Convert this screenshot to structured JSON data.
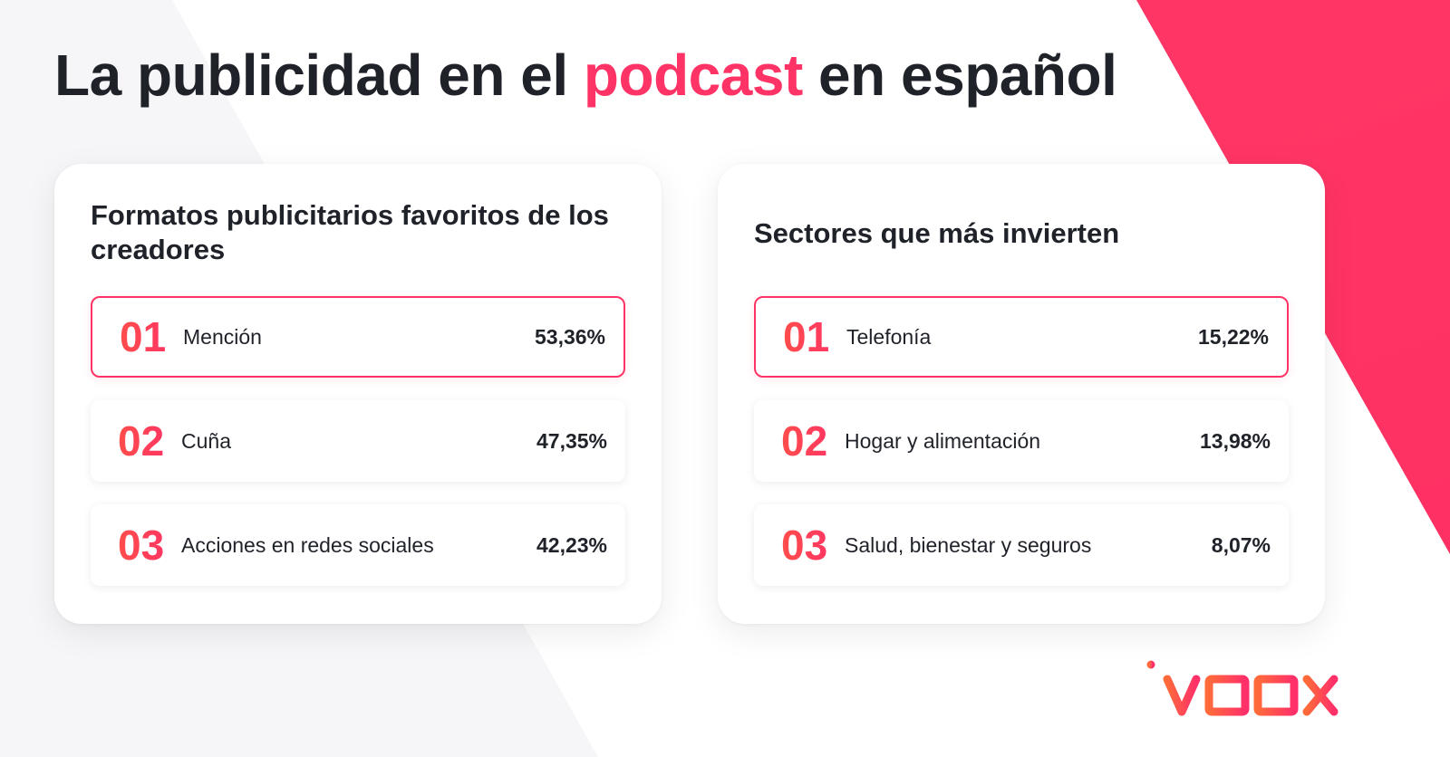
{
  "headline": {
    "part1": "La publicidad en el ",
    "accent": "podcast",
    "part2": " en español"
  },
  "cards": [
    {
      "title": "Formatos publicitarios favoritos de los creadores",
      "rows": [
        {
          "rank": "01",
          "label": "Mención",
          "value": "53,36%"
        },
        {
          "rank": "02",
          "label": "Cuña",
          "value": "47,35%"
        },
        {
          "rank": "03",
          "label": "Acciones en redes sociales",
          "value": "42,23%"
        }
      ]
    },
    {
      "title": "Sectores que más invierten",
      "rows": [
        {
          "rank": "01",
          "label": "Telefonía",
          "value": "15,22%"
        },
        {
          "rank": "02",
          "label": "Hogar y alimentación",
          "value": "13,98%"
        },
        {
          "rank": "03",
          "label": "Salud, bienestar y seguros",
          "value": "8,07%"
        }
      ]
    }
  ],
  "logo": {
    "text": "ivoox",
    "icon": "ivoox-logo"
  },
  "colors": {
    "accent": "#ff3366",
    "accent_orange": "#ff5a3d",
    "text": "#1f2229",
    "background_pink": "#ff2f63"
  }
}
